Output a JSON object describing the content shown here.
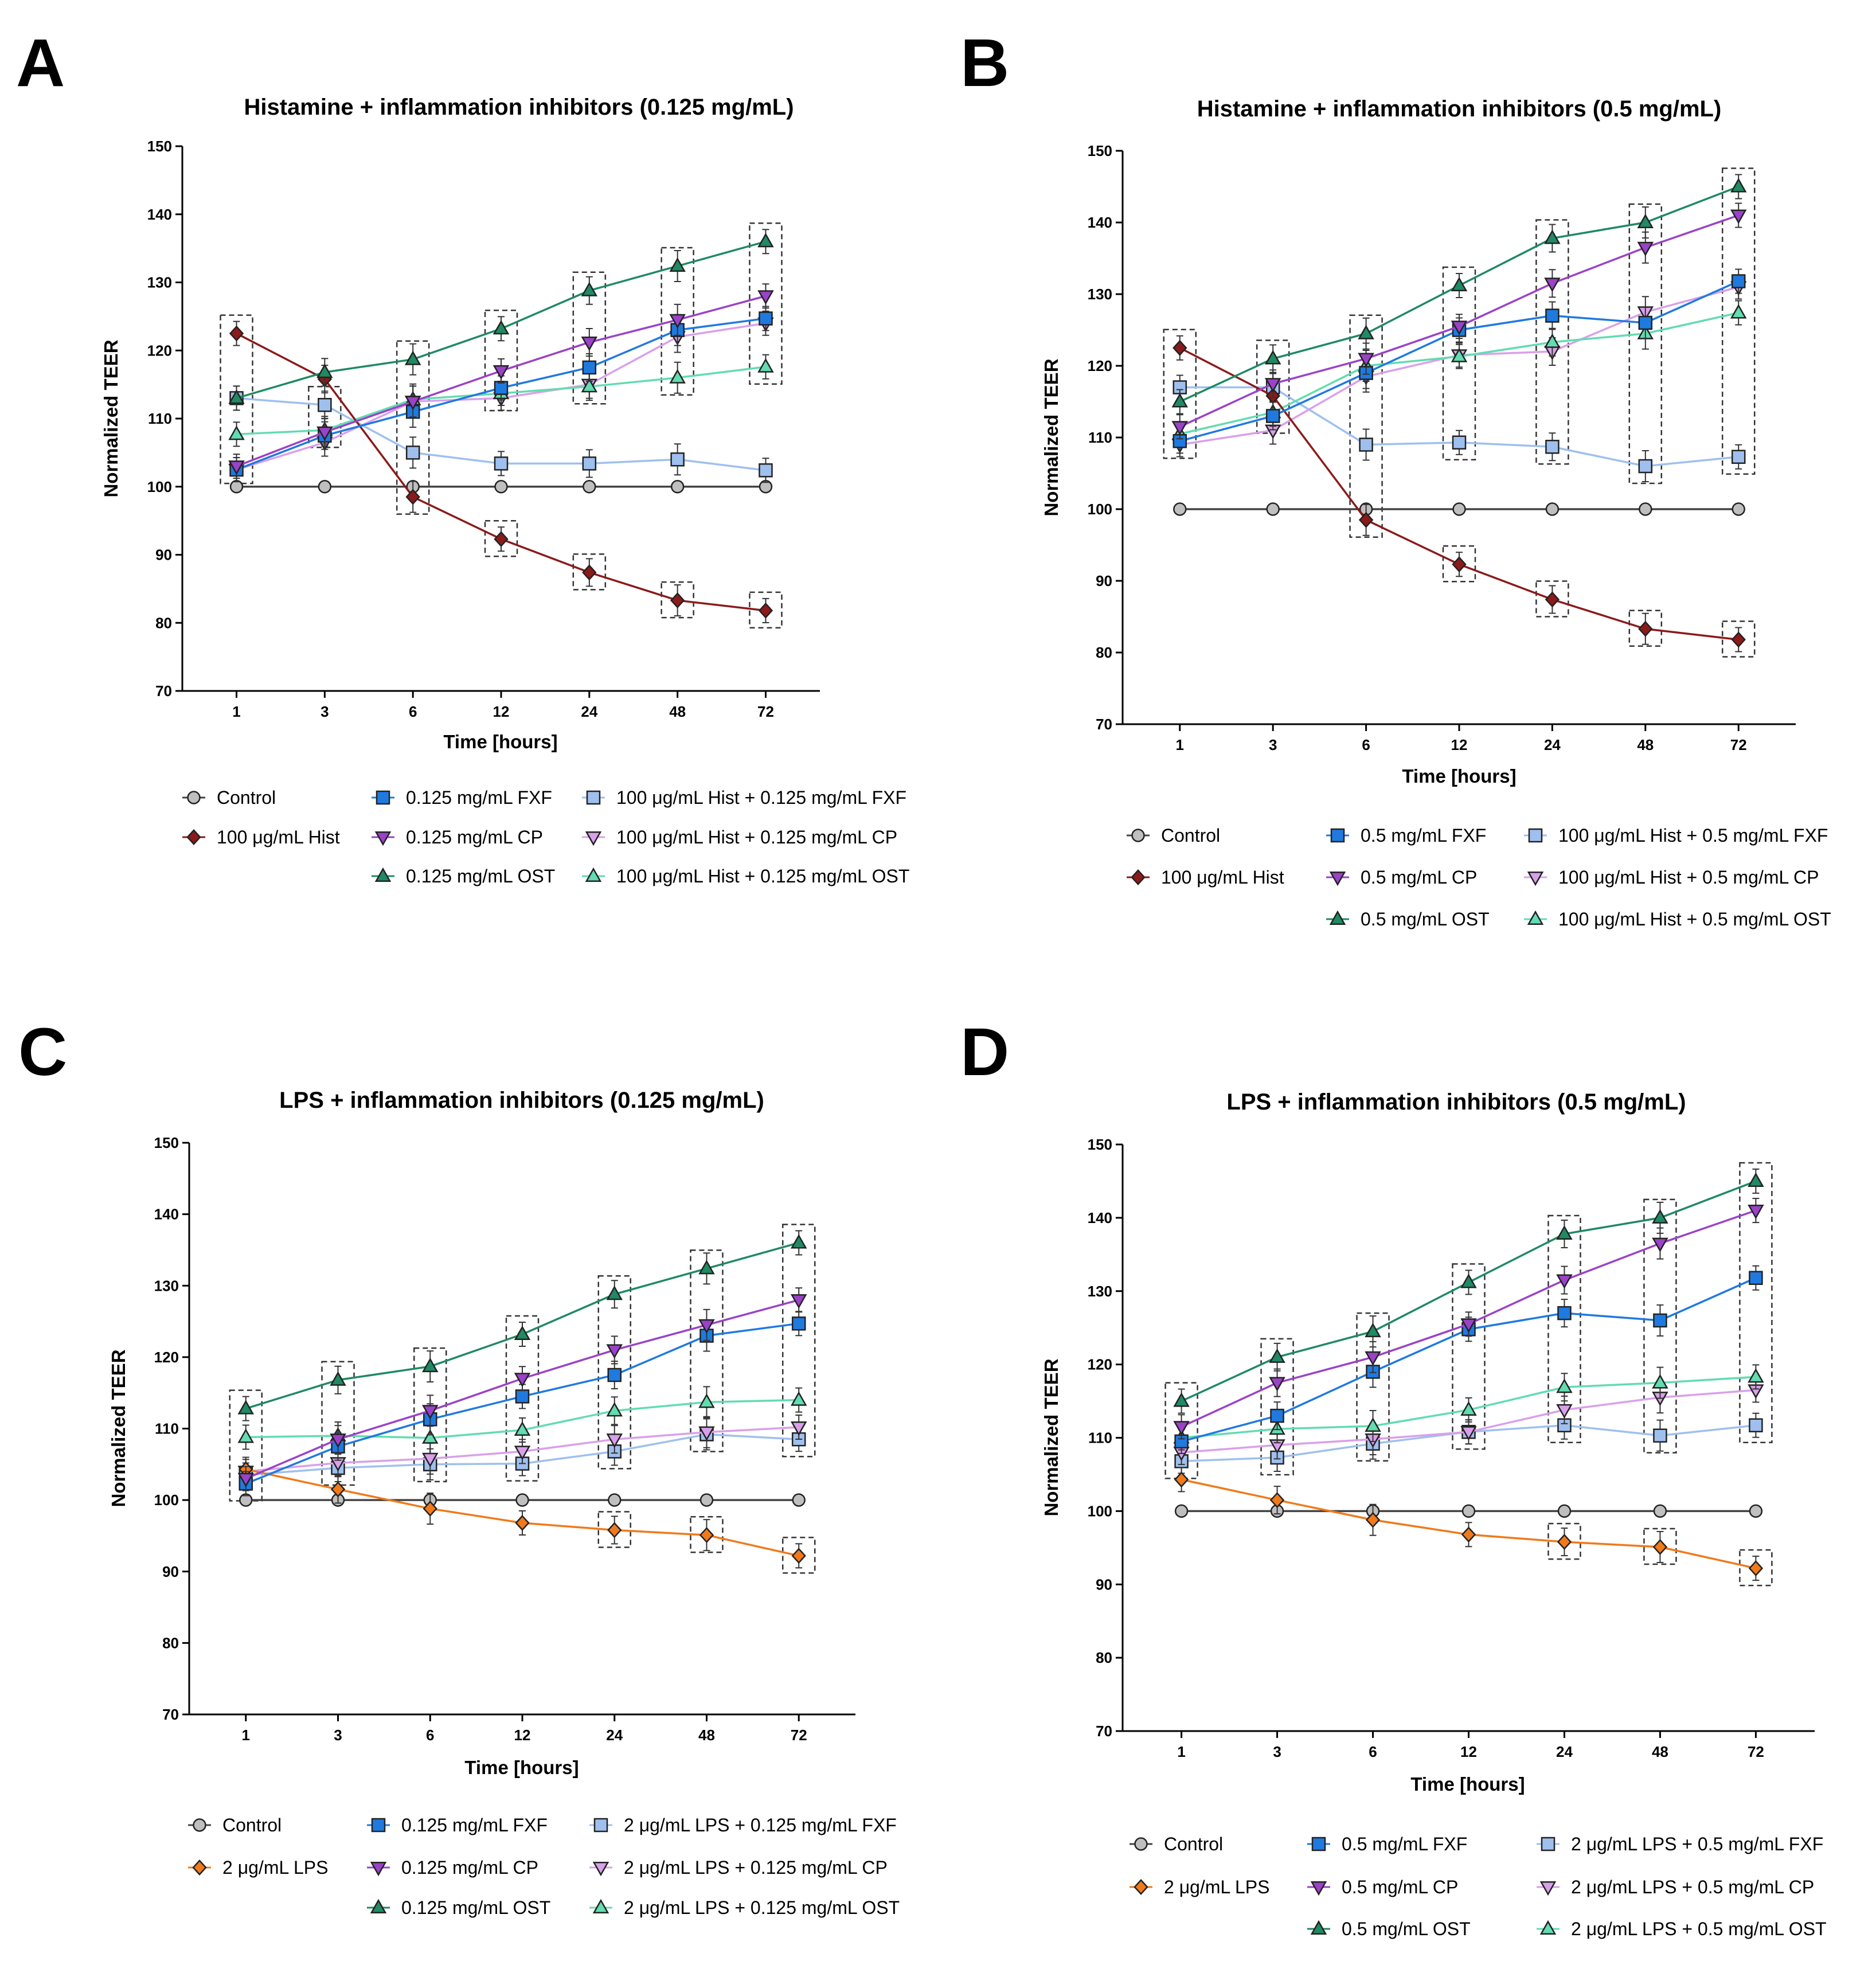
{
  "figure": {
    "panels": [
      {
        "label": "A"
      },
      {
        "label": "B"
      },
      {
        "label": "C"
      },
      {
        "label": "D"
      }
    ]
  },
  "styles": {
    "control": {
      "color": "#bfbfbf",
      "marker": "circle"
    },
    "hist": {
      "color": "#8b1a1a",
      "marker": "diamond"
    },
    "lps": {
      "color": "#f07a1a",
      "marker": "diamond"
    },
    "fxf": {
      "color": "#1f7ae0",
      "marker": "square"
    },
    "cp": {
      "color": "#9b42c8",
      "marker": "tri-down"
    },
    "ost": {
      "color": "#1f8a63",
      "marker": "tri-up"
    },
    "fxf_mix": {
      "color": "#9fc0ee",
      "marker": "square"
    },
    "cp_mix": {
      "color": "#d9a0ea",
      "marker": "tri-down"
    },
    "ost_mix": {
      "color": "#62dcb0",
      "marker": "tri-up"
    }
  },
  "chart_data": [
    {
      "type": "line",
      "title": "Histamine + inflammation inhibitors (0.125 mg/mL)",
      "xlabel": "Time [hours]",
      "ylabel": "Normalized TEER",
      "categories": [
        "1",
        "3",
        "6",
        "12",
        "24",
        "48",
        "72"
      ],
      "ylim": [
        70,
        150
      ],
      "yticks": [
        70,
        80,
        90,
        100,
        110,
        120,
        130,
        140,
        150
      ],
      "series": [
        {
          "key": "control",
          "name": "Control",
          "values": [
            100,
            100,
            100,
            100,
            100,
            100,
            100
          ]
        },
        {
          "key": "hist",
          "name": "100 μg/mL Hist",
          "values": [
            122.5,
            115.8,
            98.5,
            92.3,
            87.4,
            83.3,
            81.8
          ]
        },
        {
          "key": "fxf",
          "name": "0.125 mg/mL FXF",
          "values": [
            102.5,
            107.5,
            111,
            114.5,
            117.5,
            123,
            124.7
          ]
        },
        {
          "key": "cp",
          "name": "0.125 mg/mL CP",
          "values": [
            103,
            108,
            112.5,
            117,
            121.2,
            124.5,
            128
          ]
        },
        {
          "key": "ost",
          "name": "0.125 mg/mL OST",
          "values": [
            113,
            116.8,
            118.7,
            123.2,
            128.8,
            132.4,
            136
          ]
        },
        {
          "key": "fxf_mix",
          "name": "100 μg/mL Hist  + 0.125 mg/mL FXF",
          "values": [
            113,
            112,
            105,
            103.4,
            103.4,
            104,
            102.4
          ]
        },
        {
          "key": "cp_mix",
          "name": "100 μg/mL Hist + 0.125 mg/mL CP",
          "values": [
            102.5,
            106.5,
            112.5,
            113,
            115,
            122,
            124
          ]
        },
        {
          "key": "ost_mix",
          "name": "100 μg/mL Hist + 0.125 mg/mL OST",
          "values": [
            107.7,
            108.3,
            112.8,
            113.7,
            114.7,
            116,
            117.6
          ]
        }
      ]
    },
    {
      "type": "line",
      "title": "Histamine + inflammation inhibitors (0.5 mg/mL)",
      "xlabel": "Time [hours]",
      "ylabel": "Normalized TEER",
      "categories": [
        "1",
        "3",
        "6",
        "12",
        "24",
        "48",
        "72"
      ],
      "ylim": [
        70,
        150
      ],
      "yticks": [
        70,
        80,
        90,
        100,
        110,
        120,
        130,
        140,
        150
      ],
      "series": [
        {
          "key": "control",
          "name": "Control",
          "values": [
            100,
            100,
            100,
            100,
            100,
            100,
            100
          ]
        },
        {
          "key": "hist",
          "name": "100 μg/mL Hist",
          "values": [
            122.5,
            115.8,
            98.5,
            92.3,
            87.4,
            83.3,
            81.8
          ]
        },
        {
          "key": "fxf",
          "name": "0.5 mg/mL FXF",
          "values": [
            109.5,
            113,
            119,
            125,
            127,
            126,
            131.8
          ]
        },
        {
          "key": "cp",
          "name": "0.5 mg/mL CP",
          "values": [
            111.5,
            117.5,
            121,
            125.5,
            131.5,
            136.5,
            141
          ]
        },
        {
          "key": "ost",
          "name": "0.5 mg/mL OST",
          "values": [
            115,
            121,
            124.5,
            131.2,
            137.8,
            140,
            145
          ]
        },
        {
          "key": "fxf_mix",
          "name": "100 μg/mL Hist + 0.5 mg/mL FXF",
          "values": [
            117,
            117,
            109,
            109.3,
            108.7,
            106,
            107.3
          ]
        },
        {
          "key": "cp_mix",
          "name": "100 μg/mL Hist + 0.5 mg/mL CP",
          "values": [
            109,
            111,
            118.5,
            121.5,
            122,
            127.5,
            131
          ]
        },
        {
          "key": "ost_mix",
          "name": "100 μg/mL Hist + 0.5 mg/mL OST",
          "values": [
            110.5,
            113.5,
            120,
            121.3,
            123.3,
            124.5,
            127.4
          ]
        }
      ]
    },
    {
      "type": "line",
      "title": "LPS + inflammation inhibitors (0.125 mg/mL)",
      "xlabel": "Time [hours]",
      "ylabel": "Normalized TEER",
      "categories": [
        "1",
        "3",
        "6",
        "12",
        "24",
        "48",
        "72"
      ],
      "ylim": [
        70,
        150
      ],
      "yticks": [
        70,
        80,
        90,
        100,
        110,
        120,
        130,
        140,
        150
      ],
      "series": [
        {
          "key": "control",
          "name": "Control",
          "values": [
            100,
            100,
            100,
            100,
            100,
            100,
            100
          ]
        },
        {
          "key": "lps",
          "name": "2 μg/mL LPS",
          "values": [
            104.3,
            101.5,
            98.8,
            96.8,
            95.8,
            95.1,
            92.2
          ]
        },
        {
          "key": "fxf",
          "name": "0.125 mg/mL FXF",
          "values": [
            102.3,
            107.5,
            111.3,
            114.5,
            117.5,
            123,
            124.7
          ]
        },
        {
          "key": "cp",
          "name": "0.125 mg/mL CP",
          "values": [
            103,
            108.5,
            112.5,
            117,
            121,
            124.5,
            128
          ]
        },
        {
          "key": "ost",
          "name": "0.125 mg/mL OST",
          "values": [
            112.8,
            116.8,
            118.7,
            123.2,
            128.8,
            132.4,
            136
          ]
        },
        {
          "key": "fxf_mix",
          "name": "2 μg/mL LPS + 0.125 mg/mL FXF",
          "values": [
            103.5,
            104.5,
            105,
            105.1,
            106.8,
            109.2,
            108.5
          ]
        },
        {
          "key": "cp_mix",
          "name": "2 μg/mL LPS + 0.125 mg/mL CP",
          "values": [
            104,
            105.2,
            105.8,
            106.8,
            108.5,
            109.5,
            110.2
          ]
        },
        {
          "key": "ost_mix",
          "name": "2 μg/mL LPS + 0.125 mg/mL OST",
          "values": [
            108.8,
            109,
            108.7,
            109.8,
            112.5,
            113.7,
            114
          ]
        }
      ]
    },
    {
      "type": "line",
      "title": "LPS + inflammation inhibitors (0.5 mg/mL)",
      "xlabel": "Time [hours]",
      "ylabel": "Normalized TEER",
      "categories": [
        "1",
        "3",
        "6",
        "12",
        "24",
        "48",
        "72"
      ],
      "ylim": [
        70,
        150
      ],
      "yticks": [
        70,
        80,
        90,
        100,
        110,
        120,
        130,
        140,
        150
      ],
      "series": [
        {
          "key": "control",
          "name": "Control",
          "values": [
            100,
            100,
            100,
            100,
            100,
            100,
            100
          ]
        },
        {
          "key": "lps",
          "name": "2 μg/mL LPS",
          "values": [
            104.3,
            101.5,
            98.8,
            96.8,
            95.8,
            95.1,
            92.2
          ]
        },
        {
          "key": "fxf",
          "name": "0.5 mg/mL FXF",
          "values": [
            109.5,
            113,
            119,
            124.8,
            127,
            126,
            131.8
          ]
        },
        {
          "key": "cp",
          "name": "0.5 mg/mL CP",
          "values": [
            111.5,
            117.5,
            121,
            125.5,
            131.5,
            136.5,
            141
          ]
        },
        {
          "key": "ost",
          "name": "0.5 mg/mL OST",
          "values": [
            115,
            121,
            124.5,
            131.2,
            137.8,
            140,
            145
          ]
        },
        {
          "key": "fxf_mix",
          "name": "2 μg/mL LPS + 0.5 mg/mL FXF",
          "values": [
            106.8,
            107.3,
            109.2,
            110.8,
            111.7,
            110.3,
            111.7
          ]
        },
        {
          "key": "cp_mix",
          "name": "2 μg/mL LPS + 0.5 mg/mL CP",
          "values": [
            108,
            109,
            109.8,
            110.8,
            113.8,
            115.5,
            116.5
          ]
        },
        {
          "key": "ost_mix",
          "name": "2 μg/mL LPS + 0.5 mg/mL OST",
          "values": [
            110,
            111.2,
            111.6,
            113.8,
            116.9,
            117.5,
            118.3
          ]
        }
      ]
    }
  ]
}
